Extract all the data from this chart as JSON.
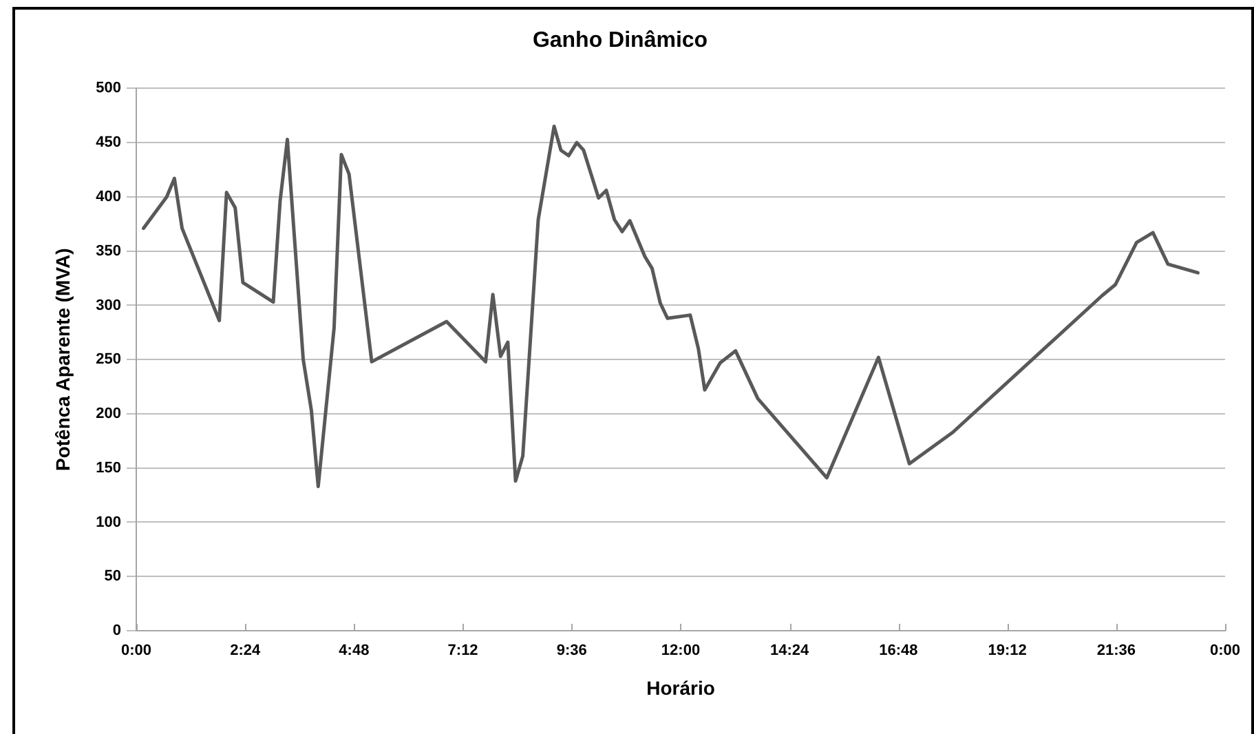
{
  "chart_data": {
    "type": "line",
    "title": "Ganho Dinâmico",
    "xlabel": "Horário",
    "ylabel": "Potênca Aparente (MVA)",
    "x": [
      0.16,
      0.67,
      0.84,
      1.01,
      1.83,
      1.99,
      2.18,
      2.35,
      3.02,
      3.17,
      3.33,
      3.68,
      3.86,
      4.01,
      4.36,
      4.52,
      4.69,
      5.19,
      6.84,
      7.7,
      7.86,
      8.03,
      8.19,
      8.36,
      8.52,
      8.86,
      9.21,
      9.36,
      9.53,
      9.71,
      9.86,
      10.19,
      10.36,
      10.54,
      10.71,
      10.88,
      11.21,
      11.37,
      11.55,
      11.71,
      12.21,
      12.39,
      12.53,
      12.87,
      13.21,
      13.7,
      15.22,
      16.36,
      17.04,
      18.0,
      21.29,
      21.58,
      22.05,
      22.41,
      22.74,
      23.4
    ],
    "series": [
      {
        "color": "#595959",
        "values": [
          371,
          400,
          417,
          371,
          286,
          404,
          390,
          321,
          303,
          396,
          453,
          250,
          203,
          133,
          279,
          439,
          421,
          248,
          285,
          248,
          310,
          253,
          266,
          138,
          161,
          379,
          465,
          443,
          438,
          450,
          443,
          399,
          406,
          379,
          368,
          378,
          345,
          334,
          302,
          288,
          291,
          260,
          222,
          247,
          258,
          214,
          141,
          252,
          154,
          183,
          309,
          319,
          358,
          367,
          338,
          330
        ]
      }
    ],
    "xlim": [
      0,
      24
    ],
    "xticks": [
      {
        "value": 0,
        "label": "0:00"
      },
      {
        "value": 2.4,
        "label": "2:24"
      },
      {
        "value": 4.8,
        "label": "4:48"
      },
      {
        "value": 7.2,
        "label": "7:12"
      },
      {
        "value": 9.6,
        "label": "9:36"
      },
      {
        "value": 12,
        "label": "12:00"
      },
      {
        "value": 14.4,
        "label": "14:24"
      },
      {
        "value": 16.8,
        "label": "16:48"
      },
      {
        "value": 19.2,
        "label": "19:12"
      },
      {
        "value": 21.6,
        "label": "21:36"
      },
      {
        "value": 24,
        "label": "0:00"
      }
    ],
    "ylim": [
      0,
      500
    ],
    "yticks": [
      0,
      50,
      100,
      150,
      200,
      250,
      300,
      350,
      400,
      450,
      500
    ],
    "grid": "y",
    "marker": "none",
    "line_style": "solid"
  }
}
